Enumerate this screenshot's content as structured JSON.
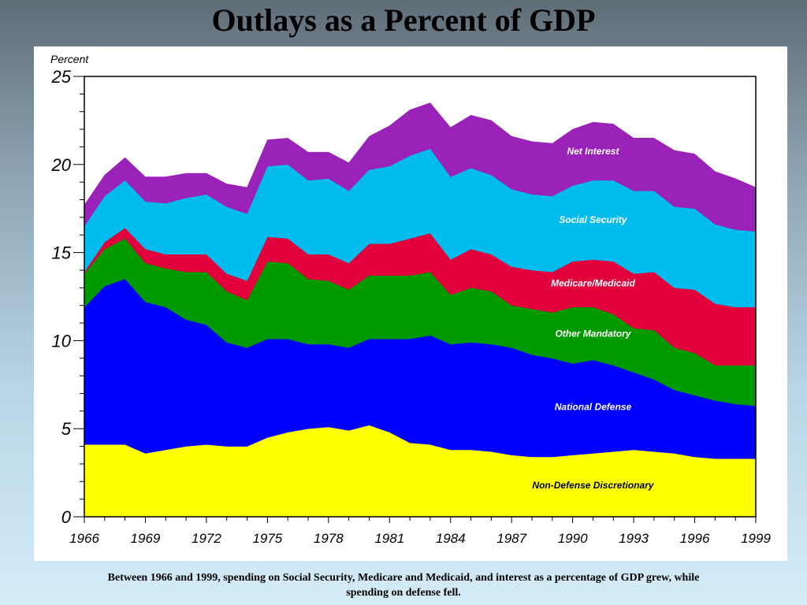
{
  "title": "Outlays as a Percent of GDP",
  "caption": "Between 1966 and 1999, spending on Social Security, Medicare and Medicaid, and interest as a percentage of GDP grew, while spending on defense fell.",
  "chart_data": {
    "type": "area",
    "stacked": true,
    "ylabel": "Percent",
    "xlabel": "",
    "ylim": [
      0,
      25
    ],
    "xlim": [
      1966,
      1999
    ],
    "y_ticks": [
      0,
      5,
      10,
      15,
      20,
      25
    ],
    "x_ticks": [
      "1966",
      "1969",
      "1972",
      "1975",
      "1978",
      "1981",
      "1984",
      "1987",
      "1990",
      "1993",
      "1996",
      "1999"
    ],
    "x": [
      1966,
      1967,
      1968,
      1969,
      1970,
      1971,
      1972,
      1973,
      1974,
      1975,
      1976,
      1977,
      1978,
      1979,
      1980,
      1981,
      1982,
      1983,
      1984,
      1985,
      1986,
      1987,
      1988,
      1989,
      1990,
      1991,
      1992,
      1993,
      1994,
      1995,
      1996,
      1997,
      1998,
      1999
    ],
    "series": [
      {
        "name": "Non-Defense Discretionary",
        "color": "#ffff00",
        "values": [
          4.1,
          4.1,
          4.1,
          3.6,
          3.8,
          4.0,
          4.1,
          4.0,
          4.0,
          4.5,
          4.8,
          5.0,
          5.1,
          4.9,
          5.2,
          4.8,
          4.2,
          4.1,
          3.8,
          3.8,
          3.7,
          3.5,
          3.4,
          3.4,
          3.5,
          3.6,
          3.7,
          3.8,
          3.7,
          3.6,
          3.4,
          3.3,
          3.3,
          3.3
        ]
      },
      {
        "name": "National Defense",
        "color": "#0000ff",
        "values": [
          7.8,
          9.0,
          9.4,
          8.6,
          8.1,
          7.2,
          6.8,
          5.9,
          5.6,
          5.6,
          5.3,
          4.8,
          4.7,
          4.7,
          4.9,
          5.3,
          5.9,
          6.2,
          6.0,
          6.1,
          6.1,
          6.1,
          5.8,
          5.6,
          5.2,
          5.3,
          4.9,
          4.4,
          4.1,
          3.6,
          3.5,
          3.3,
          3.1,
          3.0
        ]
      },
      {
        "name": "Other Mandatory",
        "color": "#009900",
        "values": [
          1.9,
          2.1,
          2.3,
          2.2,
          2.2,
          2.7,
          3.0,
          2.9,
          2.7,
          4.4,
          4.3,
          3.7,
          3.6,
          3.3,
          3.6,
          3.6,
          3.6,
          3.6,
          2.8,
          3.1,
          3.0,
          2.4,
          2.6,
          2.6,
          3.2,
          3.0,
          2.9,
          2.5,
          2.8,
          2.4,
          2.4,
          2.0,
          2.2,
          2.3
        ]
      },
      {
        "name": "Medicare/Medicaid",
        "color": "#e1003b",
        "values": [
          0.1,
          0.4,
          0.6,
          0.8,
          0.8,
          1.0,
          1.0,
          1.0,
          1.1,
          1.4,
          1.4,
          1.4,
          1.5,
          1.5,
          1.8,
          1.8,
          2.1,
          2.2,
          2.0,
          2.2,
          2.1,
          2.2,
          2.2,
          2.3,
          2.6,
          2.7,
          3.0,
          3.1,
          3.3,
          3.4,
          3.6,
          3.5,
          3.3,
          3.3
        ]
      },
      {
        "name": "Social Security",
        "color": "#00bbee",
        "values": [
          2.6,
          2.6,
          2.7,
          2.7,
          2.9,
          3.2,
          3.4,
          3.8,
          3.8,
          4.0,
          4.2,
          4.2,
          4.3,
          4.1,
          4.2,
          4.4,
          4.7,
          4.8,
          4.7,
          4.6,
          4.5,
          4.4,
          4.3,
          4.3,
          4.3,
          4.5,
          4.6,
          4.7,
          4.6,
          4.6,
          4.6,
          4.5,
          4.4,
          4.3
        ]
      },
      {
        "name": "Net Interest",
        "color": "#9b22b8",
        "values": [
          1.2,
          1.2,
          1.3,
          1.4,
          1.5,
          1.4,
          1.2,
          1.3,
          1.5,
          1.5,
          1.5,
          1.6,
          1.5,
          1.6,
          1.9,
          2.3,
          2.6,
          2.6,
          2.8,
          3.0,
          3.1,
          3.0,
          3.0,
          3.0,
          3.2,
          3.3,
          3.2,
          3.0,
          3.0,
          3.2,
          3.1,
          3.0,
          2.9,
          2.5
        ]
      }
    ]
  }
}
